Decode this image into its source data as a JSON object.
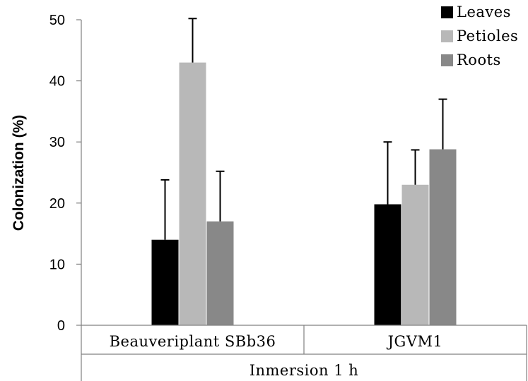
{
  "chart_data": {
    "type": "bar",
    "ylabel": "Colonization (%)",
    "ylim": [
      0,
      50
    ],
    "yticks": [
      0,
      10,
      20,
      30,
      40,
      50
    ],
    "categories": [
      "Beauveriplant SBb36",
      "JGVM1"
    ],
    "group_label": "Inmersion 1 h",
    "legend_position": "top-right",
    "grid": false,
    "series": [
      {
        "name": "Leaves",
        "color": "#000000",
        "values": [
          14,
          19.8
        ],
        "errors": [
          9.8,
          10.2
        ]
      },
      {
        "name": "Petioles",
        "color": "#b8b8b8",
        "values": [
          43,
          23
        ],
        "errors": [
          7.2,
          5.7
        ]
      },
      {
        "name": "Roots",
        "color": "#888888",
        "values": [
          17,
          28.8
        ],
        "errors": [
          8.2,
          8.2
        ]
      }
    ]
  }
}
